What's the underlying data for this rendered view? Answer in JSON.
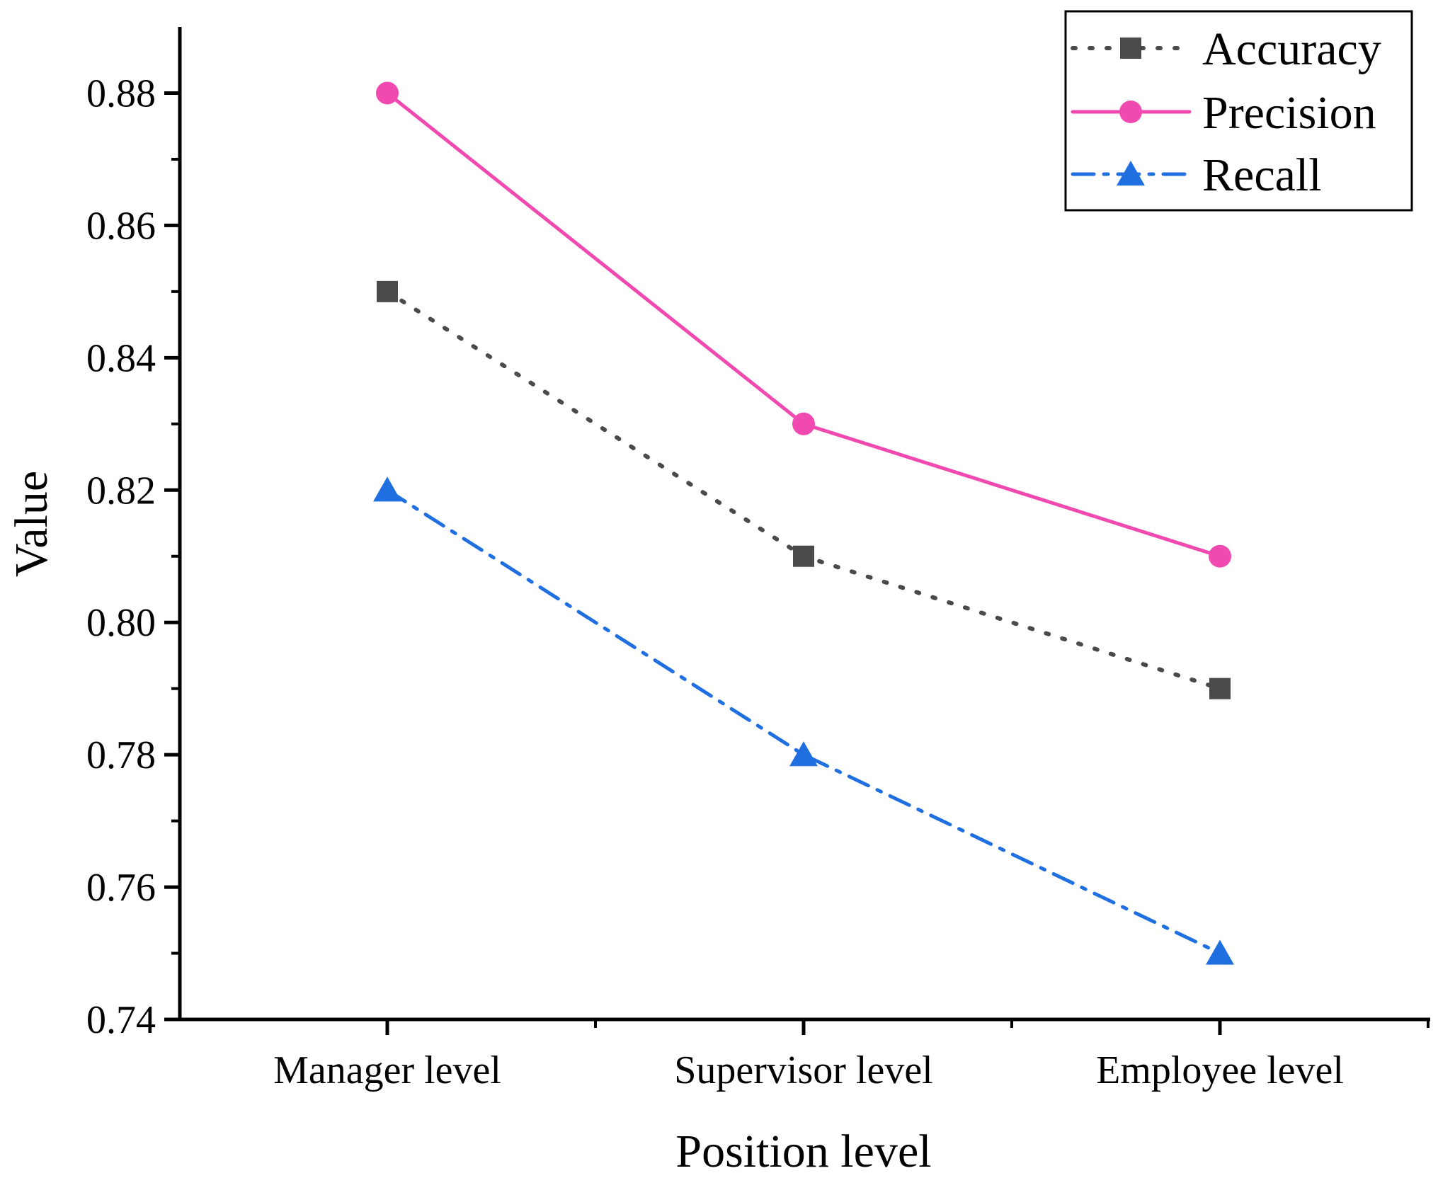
{
  "chart_data": {
    "type": "line",
    "title": "",
    "xlabel": "Position level",
    "ylabel": "Value",
    "categories": [
      "Manager level",
      "Supervisor level",
      "Employee level"
    ],
    "ylim": [
      0.74,
      0.89
    ],
    "yticks": [
      "0.74",
      "0.76",
      "0.78",
      "0.80",
      "0.82",
      "0.84",
      "0.86",
      "0.88"
    ],
    "grid": false,
    "legend_position": "top-right",
    "series": [
      {
        "name": "Accuracy",
        "values": [
          0.85,
          0.81,
          0.79
        ],
        "color": "#4a4a4a",
        "marker": "square",
        "line_style": "dotted"
      },
      {
        "name": "Precision",
        "values": [
          0.88,
          0.83,
          0.81
        ],
        "color": "#f04ab0",
        "marker": "circle",
        "line_style": "solid"
      },
      {
        "name": "Recall",
        "values": [
          0.82,
          0.78,
          0.75
        ],
        "color": "#1f6fe0",
        "marker": "triangle",
        "line_style": "dash-dot"
      }
    ]
  }
}
